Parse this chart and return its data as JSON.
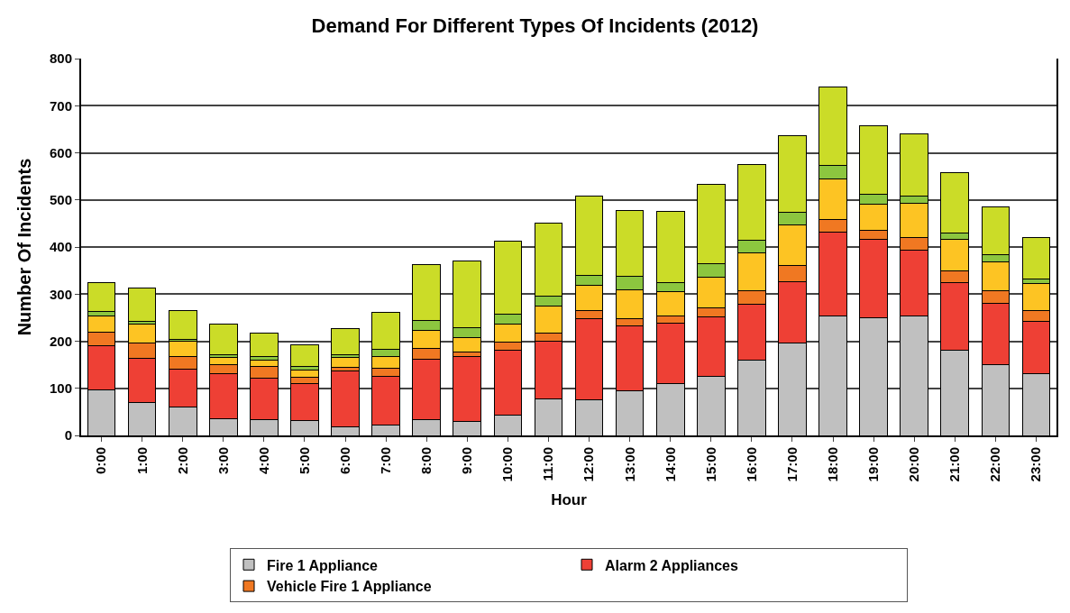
{
  "chart_data": {
    "type": "bar",
    "title": "Demand For Different Types Of Incidents (2012)",
    "xlabel": "Hour",
    "ylabel": "Number Of Incidents",
    "categories": [
      "0:00",
      "1:00",
      "2:00",
      "3:00",
      "4:00",
      "5:00",
      "6:00",
      "7:00",
      "8:00",
      "9:00",
      "10:00",
      "11:00",
      "12:00",
      "13:00",
      "14:00",
      "15:00",
      "16:00",
      "17:00",
      "18:00",
      "19:00",
      "20:00",
      "21:00",
      "22:00",
      "23:00"
    ],
    "stacked": true,
    "ylim": [
      0,
      800
    ],
    "yticks": [
      0,
      100,
      200,
      300,
      400,
      500,
      600,
      700,
      800
    ],
    "grid": "y",
    "legend": "bottom",
    "series": [
      {
        "name": "Fire 1 Appliance",
        "color": "#c0c0c0",
        "values": [
          97,
          70,
          61,
          35,
          34,
          31,
          19,
          22,
          33,
          29,
          44,
          78,
          75,
          95,
          111,
          126,
          160,
          196,
          254,
          249,
          254,
          181,
          151,
          131
        ]
      },
      {
        "name": "Alarm 2 Appliances",
        "color": "#ee4035",
        "values": [
          94,
          93,
          79,
          96,
          88,
          79,
          117,
          103,
          129,
          139,
          136,
          122,
          172,
          137,
          127,
          126,
          119,
          130,
          177,
          167,
          139,
          143,
          129,
          111
        ]
      },
      {
        "name": "Vehicle Fire 1 Appliance",
        "color": "#f07822",
        "values": [
          28,
          33,
          28,
          19,
          24,
          14,
          8,
          17,
          23,
          9,
          18,
          17,
          18,
          15,
          15,
          19,
          29,
          35,
          28,
          20,
          27,
          26,
          28,
          23
        ]
      },
      {
        "color": "#fdc423",
        "values": [
          35,
          41,
          32,
          15,
          14,
          14,
          22,
          26,
          38,
          31,
          39,
          57,
          53,
          62,
          52,
          65,
          80,
          86,
          86,
          55,
          72,
          66,
          61,
          58
        ]
      },
      {
        "color": "#8cc63f",
        "values": [
          9,
          6,
          4,
          6,
          8,
          9,
          5,
          14,
          21,
          21,
          21,
          22,
          21,
          28,
          20,
          29,
          27,
          26,
          28,
          21,
          16,
          14,
          14,
          9
        ]
      },
      {
        "color": "#cbdc28",
        "values": [
          62,
          70,
          61,
          66,
          50,
          45,
          56,
          79,
          119,
          141,
          155,
          154,
          169,
          140,
          151,
          168,
          160,
          164,
          166,
          145,
          133,
          127,
          102,
          88
        ]
      }
    ]
  }
}
